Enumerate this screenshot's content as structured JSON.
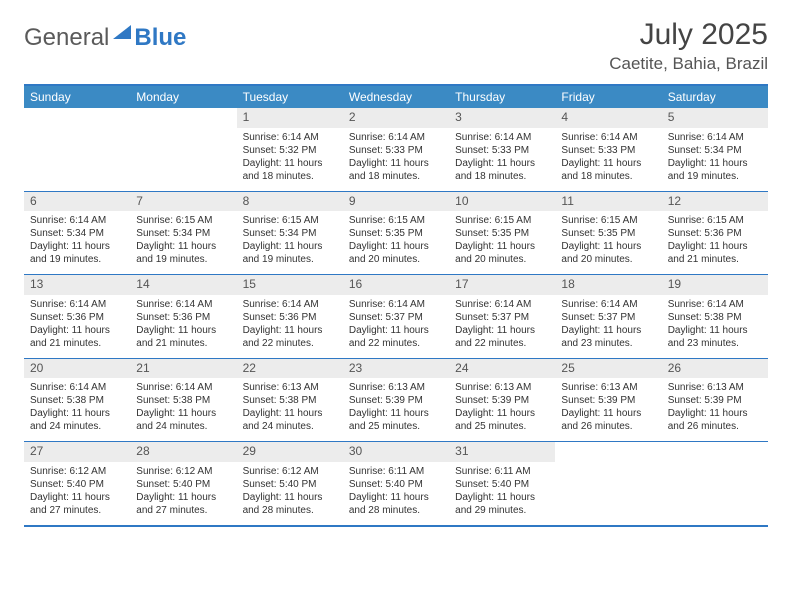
{
  "brand": {
    "general": "General",
    "blue": "Blue"
  },
  "title": {
    "month": "July 2025",
    "location": "Caetite, Bahia, Brazil"
  },
  "colors": {
    "accent": "#3b8ac4",
    "border": "#2f78c4",
    "daynum_bg": "#ececec",
    "text": "#333333",
    "muted": "#555555"
  },
  "dow": [
    "Sunday",
    "Monday",
    "Tuesday",
    "Wednesday",
    "Thursday",
    "Friday",
    "Saturday"
  ],
  "weeks": [
    [
      null,
      null,
      {
        "d": "1",
        "sr": "Sunrise: 6:14 AM",
        "ss": "Sunset: 5:32 PM",
        "dl1": "Daylight: 11 hours",
        "dl2": "and 18 minutes."
      },
      {
        "d": "2",
        "sr": "Sunrise: 6:14 AM",
        "ss": "Sunset: 5:33 PM",
        "dl1": "Daylight: 11 hours",
        "dl2": "and 18 minutes."
      },
      {
        "d": "3",
        "sr": "Sunrise: 6:14 AM",
        "ss": "Sunset: 5:33 PM",
        "dl1": "Daylight: 11 hours",
        "dl2": "and 18 minutes."
      },
      {
        "d": "4",
        "sr": "Sunrise: 6:14 AM",
        "ss": "Sunset: 5:33 PM",
        "dl1": "Daylight: 11 hours",
        "dl2": "and 18 minutes."
      },
      {
        "d": "5",
        "sr": "Sunrise: 6:14 AM",
        "ss": "Sunset: 5:34 PM",
        "dl1": "Daylight: 11 hours",
        "dl2": "and 19 minutes."
      }
    ],
    [
      {
        "d": "6",
        "sr": "Sunrise: 6:14 AM",
        "ss": "Sunset: 5:34 PM",
        "dl1": "Daylight: 11 hours",
        "dl2": "and 19 minutes."
      },
      {
        "d": "7",
        "sr": "Sunrise: 6:15 AM",
        "ss": "Sunset: 5:34 PM",
        "dl1": "Daylight: 11 hours",
        "dl2": "and 19 minutes."
      },
      {
        "d": "8",
        "sr": "Sunrise: 6:15 AM",
        "ss": "Sunset: 5:34 PM",
        "dl1": "Daylight: 11 hours",
        "dl2": "and 19 minutes."
      },
      {
        "d": "9",
        "sr": "Sunrise: 6:15 AM",
        "ss": "Sunset: 5:35 PM",
        "dl1": "Daylight: 11 hours",
        "dl2": "and 20 minutes."
      },
      {
        "d": "10",
        "sr": "Sunrise: 6:15 AM",
        "ss": "Sunset: 5:35 PM",
        "dl1": "Daylight: 11 hours",
        "dl2": "and 20 minutes."
      },
      {
        "d": "11",
        "sr": "Sunrise: 6:15 AM",
        "ss": "Sunset: 5:35 PM",
        "dl1": "Daylight: 11 hours",
        "dl2": "and 20 minutes."
      },
      {
        "d": "12",
        "sr": "Sunrise: 6:15 AM",
        "ss": "Sunset: 5:36 PM",
        "dl1": "Daylight: 11 hours",
        "dl2": "and 21 minutes."
      }
    ],
    [
      {
        "d": "13",
        "sr": "Sunrise: 6:14 AM",
        "ss": "Sunset: 5:36 PM",
        "dl1": "Daylight: 11 hours",
        "dl2": "and 21 minutes."
      },
      {
        "d": "14",
        "sr": "Sunrise: 6:14 AM",
        "ss": "Sunset: 5:36 PM",
        "dl1": "Daylight: 11 hours",
        "dl2": "and 21 minutes."
      },
      {
        "d": "15",
        "sr": "Sunrise: 6:14 AM",
        "ss": "Sunset: 5:36 PM",
        "dl1": "Daylight: 11 hours",
        "dl2": "and 22 minutes."
      },
      {
        "d": "16",
        "sr": "Sunrise: 6:14 AM",
        "ss": "Sunset: 5:37 PM",
        "dl1": "Daylight: 11 hours",
        "dl2": "and 22 minutes."
      },
      {
        "d": "17",
        "sr": "Sunrise: 6:14 AM",
        "ss": "Sunset: 5:37 PM",
        "dl1": "Daylight: 11 hours",
        "dl2": "and 22 minutes."
      },
      {
        "d": "18",
        "sr": "Sunrise: 6:14 AM",
        "ss": "Sunset: 5:37 PM",
        "dl1": "Daylight: 11 hours",
        "dl2": "and 23 minutes."
      },
      {
        "d": "19",
        "sr": "Sunrise: 6:14 AM",
        "ss": "Sunset: 5:38 PM",
        "dl1": "Daylight: 11 hours",
        "dl2": "and 23 minutes."
      }
    ],
    [
      {
        "d": "20",
        "sr": "Sunrise: 6:14 AM",
        "ss": "Sunset: 5:38 PM",
        "dl1": "Daylight: 11 hours",
        "dl2": "and 24 minutes."
      },
      {
        "d": "21",
        "sr": "Sunrise: 6:14 AM",
        "ss": "Sunset: 5:38 PM",
        "dl1": "Daylight: 11 hours",
        "dl2": "and 24 minutes."
      },
      {
        "d": "22",
        "sr": "Sunrise: 6:13 AM",
        "ss": "Sunset: 5:38 PM",
        "dl1": "Daylight: 11 hours",
        "dl2": "and 24 minutes."
      },
      {
        "d": "23",
        "sr": "Sunrise: 6:13 AM",
        "ss": "Sunset: 5:39 PM",
        "dl1": "Daylight: 11 hours",
        "dl2": "and 25 minutes."
      },
      {
        "d": "24",
        "sr": "Sunrise: 6:13 AM",
        "ss": "Sunset: 5:39 PM",
        "dl1": "Daylight: 11 hours",
        "dl2": "and 25 minutes."
      },
      {
        "d": "25",
        "sr": "Sunrise: 6:13 AM",
        "ss": "Sunset: 5:39 PM",
        "dl1": "Daylight: 11 hours",
        "dl2": "and 26 minutes."
      },
      {
        "d": "26",
        "sr": "Sunrise: 6:13 AM",
        "ss": "Sunset: 5:39 PM",
        "dl1": "Daylight: 11 hours",
        "dl2": "and 26 minutes."
      }
    ],
    [
      {
        "d": "27",
        "sr": "Sunrise: 6:12 AM",
        "ss": "Sunset: 5:40 PM",
        "dl1": "Daylight: 11 hours",
        "dl2": "and 27 minutes."
      },
      {
        "d": "28",
        "sr": "Sunrise: 6:12 AM",
        "ss": "Sunset: 5:40 PM",
        "dl1": "Daylight: 11 hours",
        "dl2": "and 27 minutes."
      },
      {
        "d": "29",
        "sr": "Sunrise: 6:12 AM",
        "ss": "Sunset: 5:40 PM",
        "dl1": "Daylight: 11 hours",
        "dl2": "and 28 minutes."
      },
      {
        "d": "30",
        "sr": "Sunrise: 6:11 AM",
        "ss": "Sunset: 5:40 PM",
        "dl1": "Daylight: 11 hours",
        "dl2": "and 28 minutes."
      },
      {
        "d": "31",
        "sr": "Sunrise: 6:11 AM",
        "ss": "Sunset: 5:40 PM",
        "dl1": "Daylight: 11 hours",
        "dl2": "and 29 minutes."
      },
      null,
      null
    ]
  ]
}
